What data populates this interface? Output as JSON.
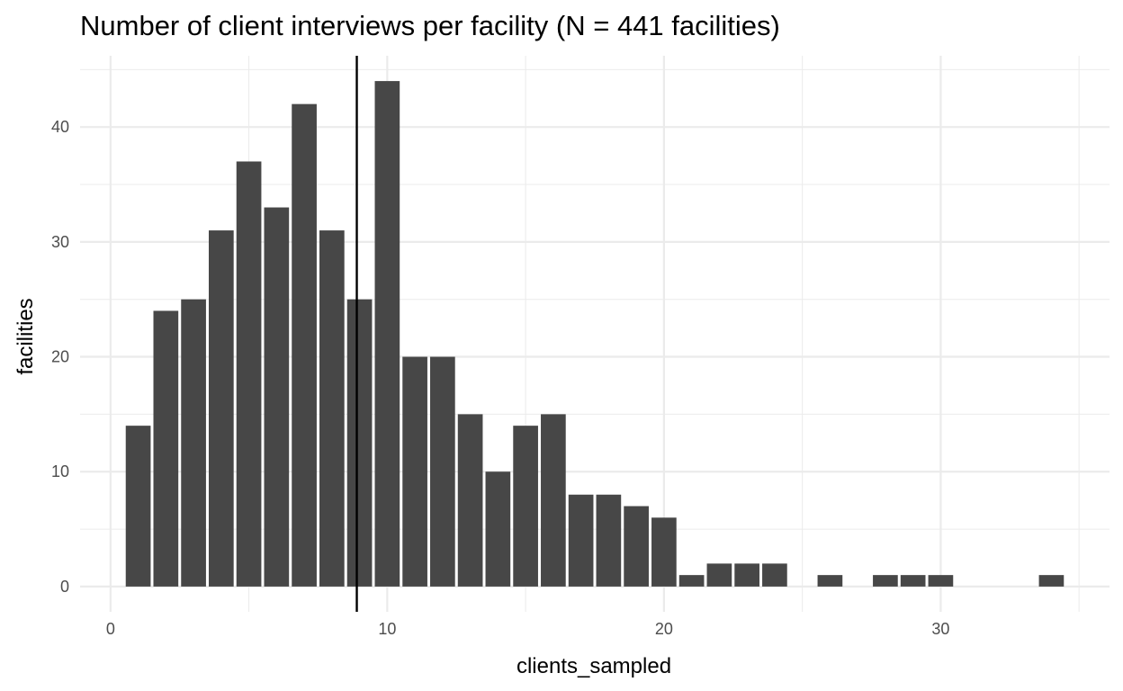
{
  "chart_data": {
    "type": "bar",
    "title": "Number of client interviews per facility (N = 441 facilities)",
    "xlabel": "clients_sampled",
    "ylabel": "facilities",
    "x": [
      1,
      2,
      3,
      4,
      5,
      6,
      7,
      8,
      9,
      10,
      11,
      12,
      13,
      14,
      15,
      16,
      17,
      18,
      19,
      20,
      21,
      22,
      23,
      24,
      26,
      28,
      29,
      30,
      34
    ],
    "values": [
      14,
      24,
      25,
      31,
      37,
      33,
      42,
      31,
      25,
      44,
      20,
      20,
      15,
      10,
      14,
      15,
      8,
      8,
      7,
      6,
      1,
      2,
      2,
      2,
      1,
      1,
      1,
      1,
      1
    ],
    "xlim": [
      -1.1,
      36.1
    ],
    "ylim": [
      -2.2,
      46.2
    ],
    "x_ticks": [
      0,
      10,
      20,
      30
    ],
    "y_ticks": [
      0,
      10,
      20,
      30,
      40
    ],
    "vline_x": 8.9,
    "grid": true,
    "bar_color": "#474747",
    "grid_color": "#ebebeb",
    "vline_color": "#000000"
  }
}
